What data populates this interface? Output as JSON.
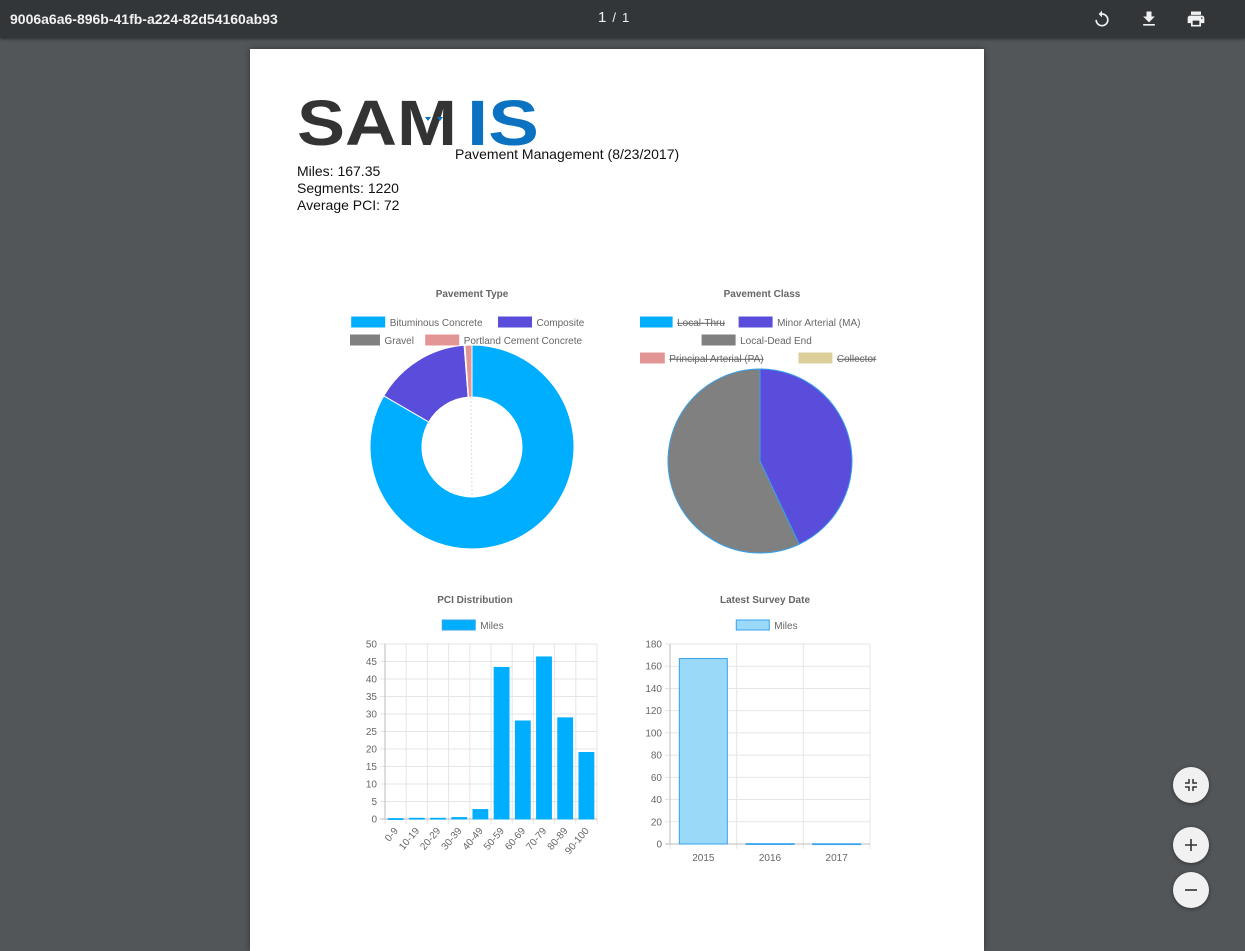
{
  "viewer": {
    "title": "9006a6a6-896b-41fb-a224-82d54160ab93",
    "current_page": "1",
    "separator": "/",
    "total_pages": "1",
    "icons": [
      "rotate-icon",
      "download-icon",
      "print-icon",
      "fit-page-icon",
      "zoom-in-icon",
      "zoom-out-icon"
    ]
  },
  "report": {
    "logo_text_dark": "SAM",
    "logo_text_blue": "IS",
    "title": "Pavement Management (8/23/2017)",
    "miles": "Miles: 167.35",
    "segments": "Segments: 1220",
    "average_pci": "Average PCI: 72"
  },
  "chart_data": [
    {
      "type": "pie",
      "variant": "doughnut",
      "title": "Pavement Type",
      "legend": [
        {
          "label": "Bituminous Concrete",
          "color": "#00aeff",
          "hidden": false
        },
        {
          "label": "Composite",
          "color": "#5b4ddb",
          "hidden": false
        },
        {
          "label": "Gravel",
          "color": "#808080",
          "hidden": false
        },
        {
          "label": "Portland Cement Concrete",
          "color": "#e39595",
          "hidden": false
        }
      ],
      "values": [
        139.5,
        25.8,
        0.2,
        1.85
      ]
    },
    {
      "type": "pie",
      "title": "Pavement Class",
      "legend": [
        {
          "label": "Local-Thru",
          "color": "#00aeff",
          "hidden": true
        },
        {
          "label": "Minor Arterial (MA)",
          "color": "#5b4ddb",
          "hidden": false
        },
        {
          "label": "Local-Dead End",
          "color": "#808080",
          "hidden": false
        },
        {
          "label": "Principal Arterial (PA)",
          "color": "#e39595",
          "hidden": true
        },
        {
          "label": "Collector",
          "color": "#dccf99",
          "hidden": true
        }
      ],
      "values": [
        0,
        0.43,
        0.57,
        0,
        0
      ]
    },
    {
      "type": "bar",
      "title": "PCI Distribution",
      "legend": [
        {
          "label": "Miles",
          "color": "#00aeff"
        }
      ],
      "categories": [
        "0-9",
        "10-19",
        "20-29",
        "30-39",
        "40-49",
        "50-59",
        "60-69",
        "70-79",
        "80-89",
        "90-100"
      ],
      "series": [
        {
          "name": "Miles",
          "values": [
            0.1,
            0.2,
            0.2,
            0.4,
            2.7,
            43.3,
            28.0,
            46.3,
            28.9,
            19.0
          ]
        }
      ],
      "ylim": [
        0,
        50
      ],
      "yticks": [
        "0",
        "5",
        "10",
        "15",
        "20",
        "25",
        "30",
        "35",
        "40",
        "45",
        "50"
      ],
      "grid": true
    },
    {
      "type": "bar",
      "title": "Latest Survey Date",
      "legend": [
        {
          "label": "Miles",
          "color": "#9ad9f8"
        }
      ],
      "categories": [
        "2015",
        "2016",
        "2017"
      ],
      "series": [
        {
          "name": "Miles",
          "values": [
            166.9,
            0.3,
            0.2
          ]
        }
      ],
      "ylim": [
        0,
        180
      ],
      "yticks": [
        "0",
        "20",
        "40",
        "60",
        "80",
        "100",
        "120",
        "140",
        "160",
        "180"
      ],
      "grid": true
    }
  ]
}
